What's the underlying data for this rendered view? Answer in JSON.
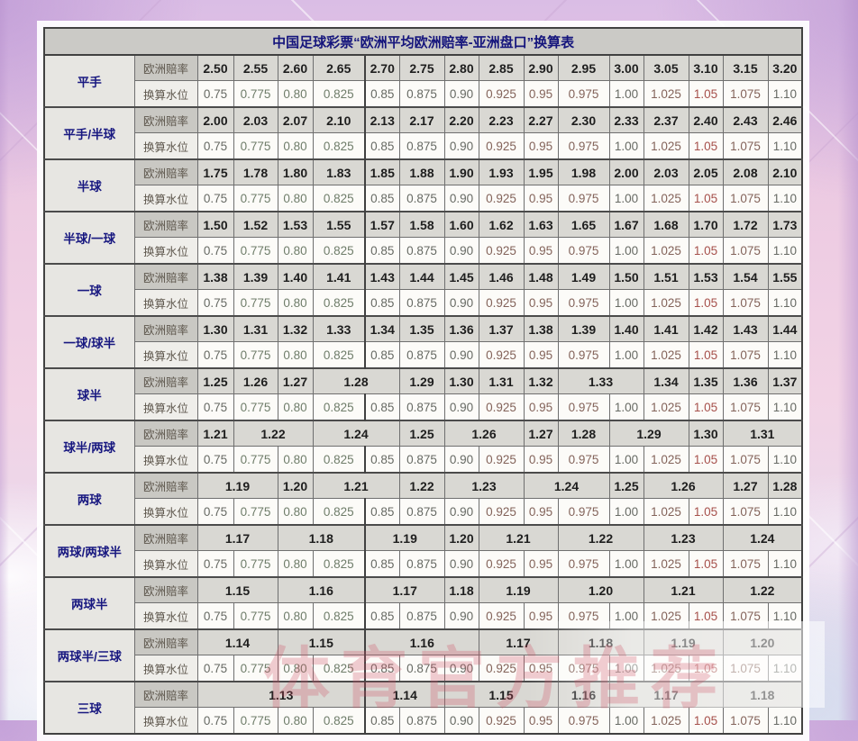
{
  "page": {
    "watermark": "体育官方推荐"
  },
  "colors": {
    "title_text": "#15157c",
    "handicap_text": "#181880",
    "odds_text": "#1e1e1e",
    "water_red": "#a6504b",
    "watermark_red": "rgba(206,77,98,0.5)",
    "table_border": "#414141",
    "background_pink": "#f2d3e5",
    "background_purple": "#c8a6da"
  },
  "chart_data": {
    "type": "table",
    "title": "中国足球彩票“欧洲平均欧洲赔率-亚洲盘口”换算表",
    "row_labels": {
      "odds": "欧洲赔率",
      "water": "换算水位"
    },
    "water_levels": [
      "0.75",
      "0.775",
      "0.80",
      "0.825",
      "0.85",
      "0.875",
      "0.90",
      "0.925",
      "0.95",
      "0.975",
      "1.00",
      "1.025",
      "1.05",
      "1.075",
      "1.10"
    ],
    "groups": [
      {
        "handicap": "平手",
        "odds": [
          {
            "v": "2.50",
            "s": 1
          },
          {
            "v": "2.55",
            "s": 1
          },
          {
            "v": "2.60",
            "s": 1
          },
          {
            "v": "2.65",
            "s": 1
          },
          {
            "v": "2.70",
            "s": 1
          },
          {
            "v": "2.75",
            "s": 1
          },
          {
            "v": "2.80",
            "s": 1
          },
          {
            "v": "2.85",
            "s": 1
          },
          {
            "v": "2.90",
            "s": 1
          },
          {
            "v": "2.95",
            "s": 1
          },
          {
            "v": "3.00",
            "s": 1
          },
          {
            "v": "3.05",
            "s": 1
          },
          {
            "v": "3.10",
            "s": 1
          },
          {
            "v": "3.15",
            "s": 1
          },
          {
            "v": "3.20",
            "s": 1
          }
        ]
      },
      {
        "handicap": "平手/半球",
        "odds": [
          {
            "v": "2.00",
            "s": 1
          },
          {
            "v": "2.03",
            "s": 1
          },
          {
            "v": "2.07",
            "s": 1
          },
          {
            "v": "2.10",
            "s": 1
          },
          {
            "v": "2.13",
            "s": 1
          },
          {
            "v": "2.17",
            "s": 1
          },
          {
            "v": "2.20",
            "s": 1
          },
          {
            "v": "2.23",
            "s": 1
          },
          {
            "v": "2.27",
            "s": 1
          },
          {
            "v": "2.30",
            "s": 1
          },
          {
            "v": "2.33",
            "s": 1
          },
          {
            "v": "2.37",
            "s": 1
          },
          {
            "v": "2.40",
            "s": 1
          },
          {
            "v": "2.43",
            "s": 1
          },
          {
            "v": "2.46",
            "s": 1
          }
        ]
      },
      {
        "handicap": "半球",
        "odds": [
          {
            "v": "1.75",
            "s": 1
          },
          {
            "v": "1.78",
            "s": 1
          },
          {
            "v": "1.80",
            "s": 1
          },
          {
            "v": "1.83",
            "s": 1
          },
          {
            "v": "1.85",
            "s": 1
          },
          {
            "v": "1.88",
            "s": 1
          },
          {
            "v": "1.90",
            "s": 1
          },
          {
            "v": "1.93",
            "s": 1
          },
          {
            "v": "1.95",
            "s": 1
          },
          {
            "v": "1.98",
            "s": 1
          },
          {
            "v": "2.00",
            "s": 1
          },
          {
            "v": "2.03",
            "s": 1
          },
          {
            "v": "2.05",
            "s": 1
          },
          {
            "v": "2.08",
            "s": 1
          },
          {
            "v": "2.10",
            "s": 1
          }
        ]
      },
      {
        "handicap": "半球/一球",
        "odds": [
          {
            "v": "1.50",
            "s": 1
          },
          {
            "v": "1.52",
            "s": 1
          },
          {
            "v": "1.53",
            "s": 1
          },
          {
            "v": "1.55",
            "s": 1
          },
          {
            "v": "1.57",
            "s": 1
          },
          {
            "v": "1.58",
            "s": 1
          },
          {
            "v": "1.60",
            "s": 1
          },
          {
            "v": "1.62",
            "s": 1
          },
          {
            "v": "1.63",
            "s": 1
          },
          {
            "v": "1.65",
            "s": 1
          },
          {
            "v": "1.67",
            "s": 1
          },
          {
            "v": "1.68",
            "s": 1
          },
          {
            "v": "1.70",
            "s": 1
          },
          {
            "v": "1.72",
            "s": 1
          },
          {
            "v": "1.73",
            "s": 1
          }
        ]
      },
      {
        "handicap": "一球",
        "odds": [
          {
            "v": "1.38",
            "s": 1
          },
          {
            "v": "1.39",
            "s": 1
          },
          {
            "v": "1.40",
            "s": 1
          },
          {
            "v": "1.41",
            "s": 1
          },
          {
            "v": "1.43",
            "s": 1
          },
          {
            "v": "1.44",
            "s": 1
          },
          {
            "v": "1.45",
            "s": 1
          },
          {
            "v": "1.46",
            "s": 1
          },
          {
            "v": "1.48",
            "s": 1
          },
          {
            "v": "1.49",
            "s": 1
          },
          {
            "v": "1.50",
            "s": 1
          },
          {
            "v": "1.51",
            "s": 1
          },
          {
            "v": "1.53",
            "s": 1
          },
          {
            "v": "1.54",
            "s": 1
          },
          {
            "v": "1.55",
            "s": 1
          }
        ]
      },
      {
        "handicap": "一球/球半",
        "odds": [
          {
            "v": "1.30",
            "s": 1
          },
          {
            "v": "1.31",
            "s": 1
          },
          {
            "v": "1.32",
            "s": 1
          },
          {
            "v": "1.33",
            "s": 1
          },
          {
            "v": "1.34",
            "s": 1
          },
          {
            "v": "1.35",
            "s": 1
          },
          {
            "v": "1.36",
            "s": 1
          },
          {
            "v": "1.37",
            "s": 1
          },
          {
            "v": "1.38",
            "s": 1
          },
          {
            "v": "1.39",
            "s": 1
          },
          {
            "v": "1.40",
            "s": 1
          },
          {
            "v": "1.41",
            "s": 1
          },
          {
            "v": "1.42",
            "s": 1
          },
          {
            "v": "1.43",
            "s": 1
          },
          {
            "v": "1.44",
            "s": 1
          }
        ]
      },
      {
        "handicap": "球半",
        "odds": [
          {
            "v": "1.25",
            "s": 1
          },
          {
            "v": "1.26",
            "s": 1
          },
          {
            "v": "1.27",
            "s": 1
          },
          {
            "v": "1.28",
            "s": 2
          },
          {
            "v": "1.29",
            "s": 1
          },
          {
            "v": "1.30",
            "s": 1
          },
          {
            "v": "1.31",
            "s": 1
          },
          {
            "v": "1.32",
            "s": 1
          },
          {
            "v": "1.33",
            "s": 2
          },
          {
            "v": "1.34",
            "s": 1
          },
          {
            "v": "1.35",
            "s": 1
          },
          {
            "v": "1.36",
            "s": 1
          },
          {
            "v": "1.37",
            "s": 1
          }
        ]
      },
      {
        "handicap": "球半/两球",
        "odds": [
          {
            "v": "1.21",
            "s": 1
          },
          {
            "v": "1.22",
            "s": 2
          },
          {
            "v": "1.24",
            "s": 2
          },
          {
            "v": "1.25",
            "s": 1
          },
          {
            "v": "1.26",
            "s": 2
          },
          {
            "v": "1.27",
            "s": 1
          },
          {
            "v": "1.28",
            "s": 1
          },
          {
            "v": "1.29",
            "s": 2
          },
          {
            "v": "1.30",
            "s": 1
          },
          {
            "v": "1.31",
            "s": 2
          }
        ]
      },
      {
        "handicap": "两球",
        "odds": [
          {
            "v": "1.19",
            "s": 2
          },
          {
            "v": "1.20",
            "s": 1
          },
          {
            "v": "1.21",
            "s": 2
          },
          {
            "v": "1.22",
            "s": 1
          },
          {
            "v": "1.23",
            "s": 2
          },
          {
            "v": "1.24",
            "s": 2
          },
          {
            "v": "1.25",
            "s": 1
          },
          {
            "v": "1.26",
            "s": 2
          },
          {
            "v": "1.27",
            "s": 1
          },
          {
            "v": "1.28",
            "s": 1
          }
        ]
      },
      {
        "handicap": "两球/两球半",
        "odds": [
          {
            "v": "1.17",
            "s": 2
          },
          {
            "v": "1.18",
            "s": 2
          },
          {
            "v": "1.19",
            "s": 2
          },
          {
            "v": "1.20",
            "s": 1
          },
          {
            "v": "1.21",
            "s": 2
          },
          {
            "v": "1.22",
            "s": 2
          },
          {
            "v": "1.23",
            "s": 2
          },
          {
            "v": "1.24",
            "s": 2
          }
        ]
      },
      {
        "handicap": "两球半",
        "odds": [
          {
            "v": "1.15",
            "s": 2
          },
          {
            "v": "1.16",
            "s": 2
          },
          {
            "v": "1.17",
            "s": 2
          },
          {
            "v": "1.18",
            "s": 1
          },
          {
            "v": "1.19",
            "s": 2
          },
          {
            "v": "1.20",
            "s": 2
          },
          {
            "v": "1.21",
            "s": 2
          },
          {
            "v": "1.22",
            "s": 2
          }
        ]
      },
      {
        "handicap": "两球半/三球",
        "odds": [
          {
            "v": "1.14",
            "s": 2
          },
          {
            "v": "1.15",
            "s": 2
          },
          {
            "v": "1.16",
            "s": 3
          },
          {
            "v": "1.17",
            "s": 2
          },
          {
            "v": "1.18",
            "s": 2
          },
          {
            "v": "1.19",
            "s": 2
          },
          {
            "v": "1.20",
            "s": 2
          }
        ]
      },
      {
        "handicap": "三球",
        "odds": [
          {
            "v": "1.13",
            "s": 4
          },
          {
            "v": "1.14",
            "s": 2
          },
          {
            "v": "1.15",
            "s": 3
          },
          {
            "v": "1.16",
            "s": 1
          },
          {
            "v": "1.17",
            "s": 3
          },
          {
            "v": "1.18",
            "s": 2
          }
        ]
      }
    ]
  }
}
